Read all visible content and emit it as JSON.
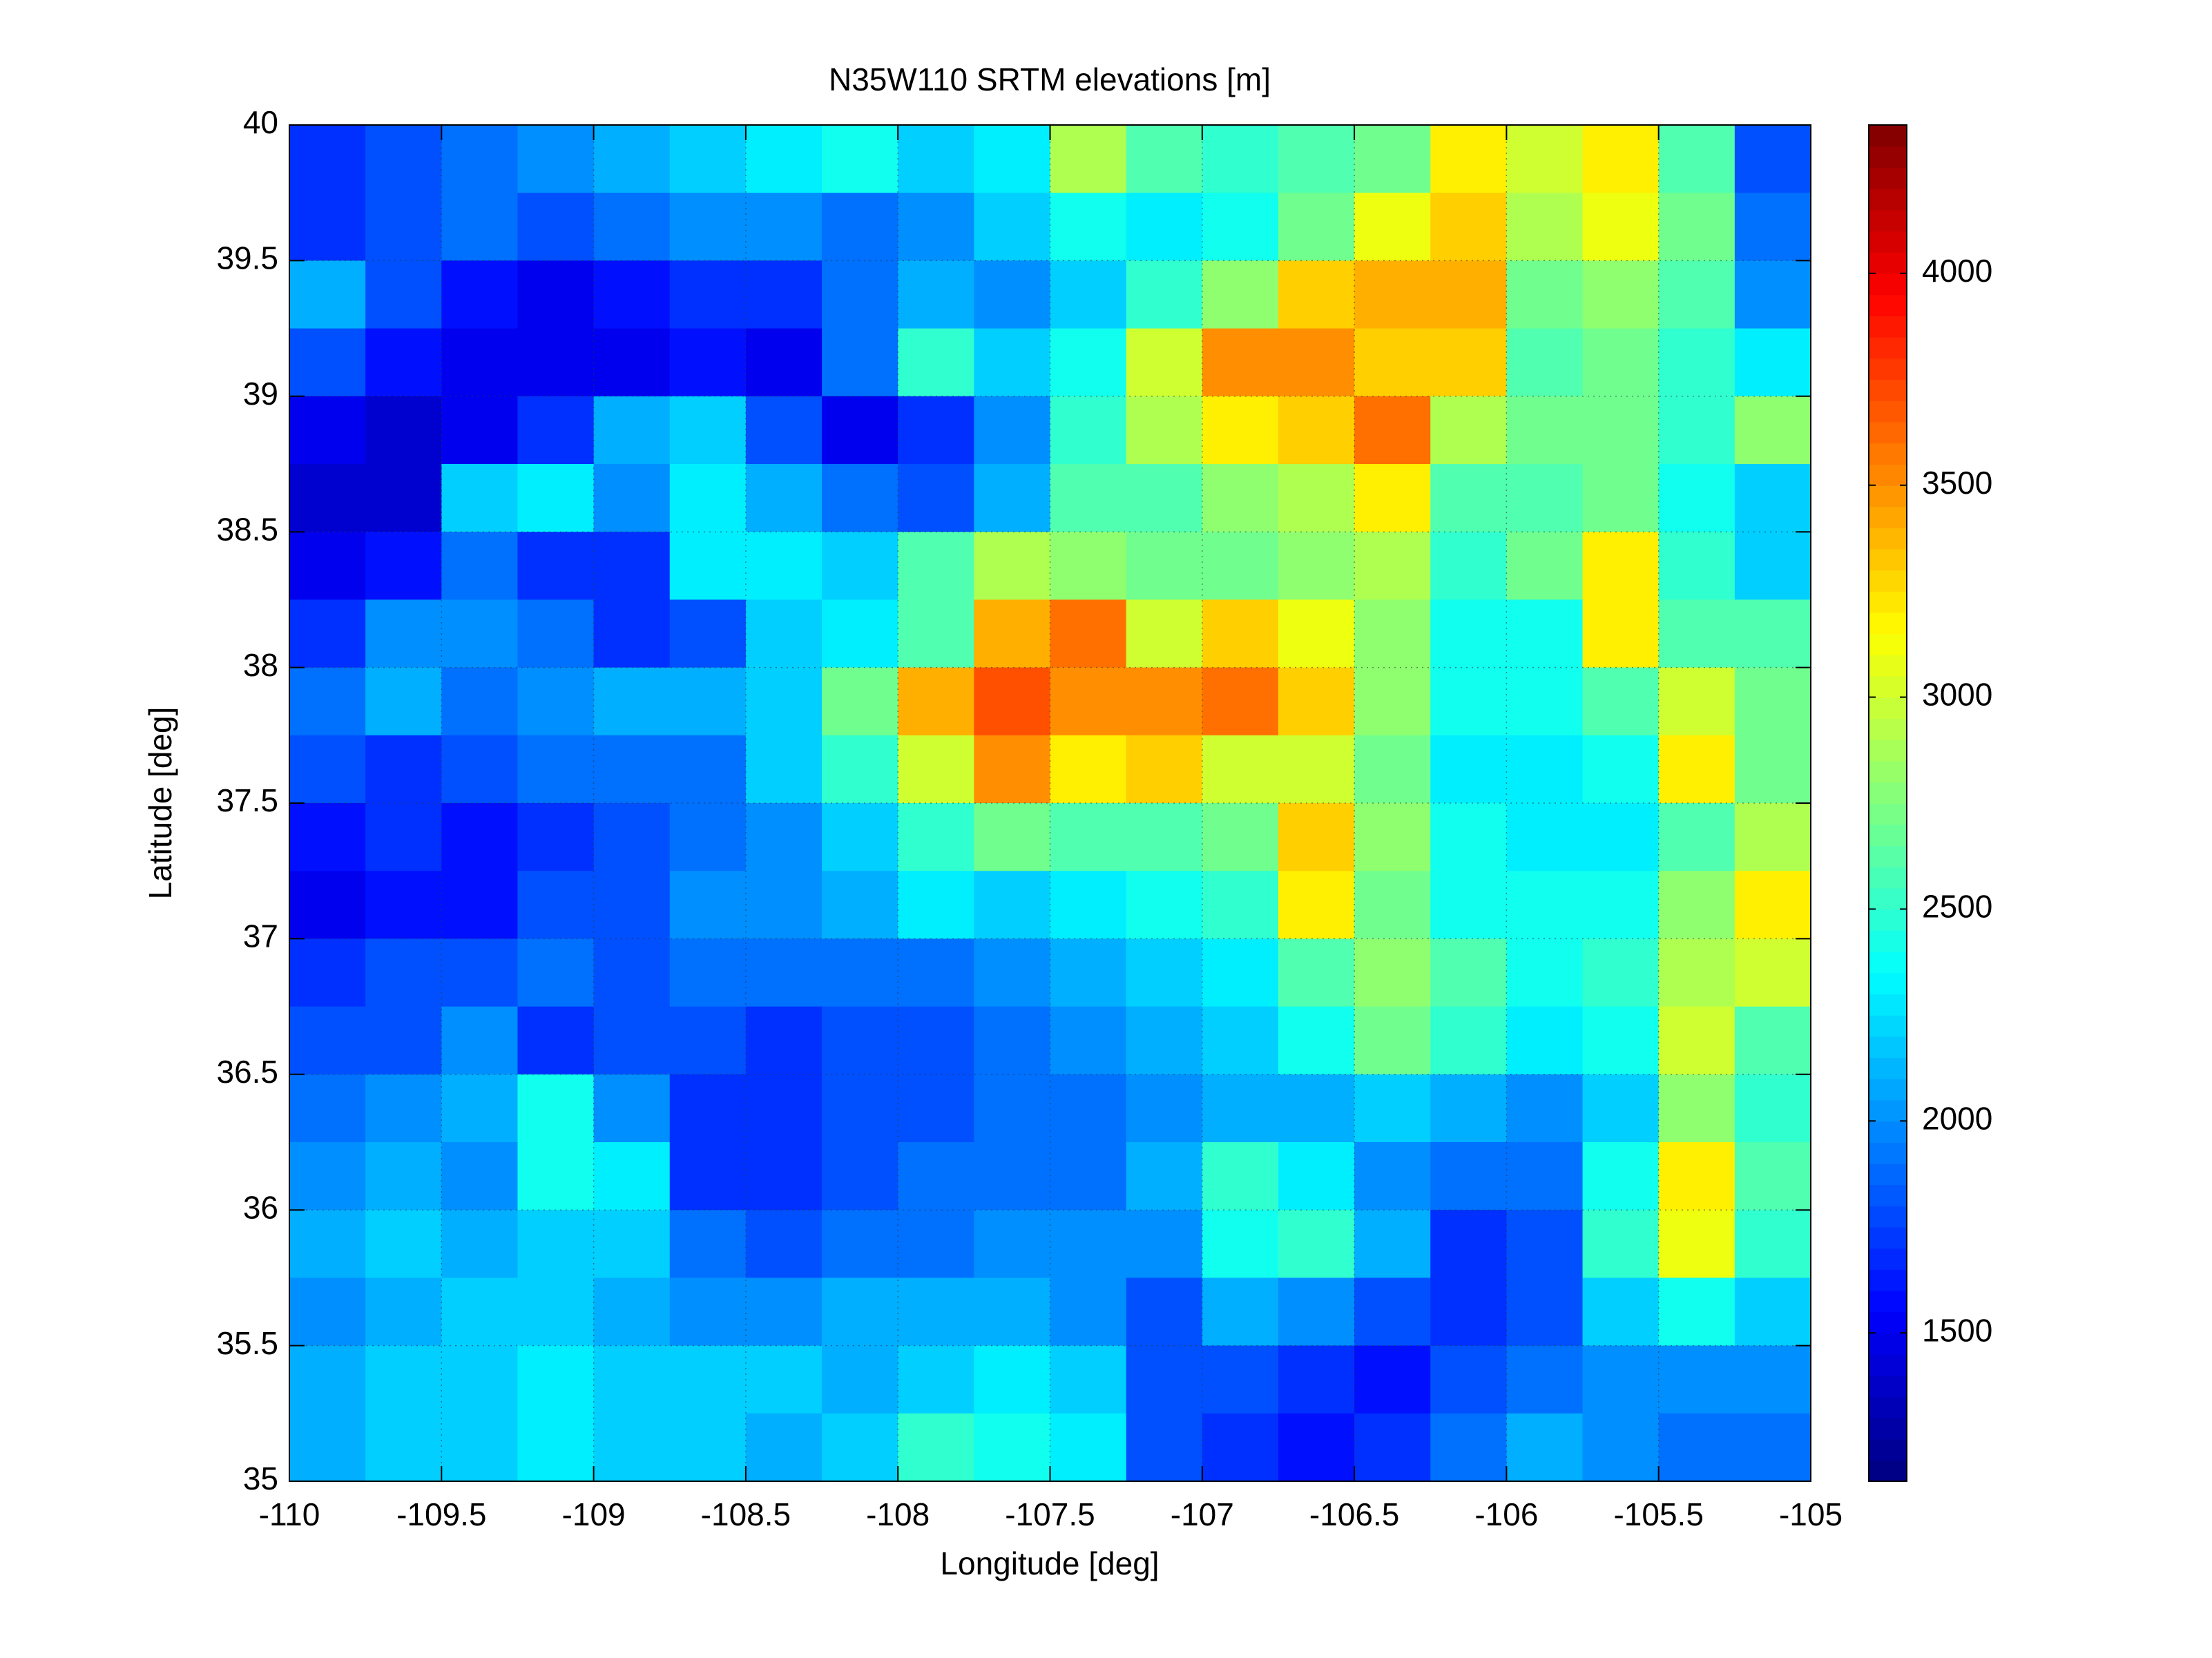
{
  "chart_data": {
    "type": "heatmap",
    "title": "N35W110 SRTM elevations [m]",
    "x_label": "Longitude [deg]",
    "y_label": "Latitude [deg]",
    "xlim": [
      -110,
      -105
    ],
    "ylim": [
      35,
      40
    ],
    "xticks": [
      -110,
      -109.5,
      -109,
      -108.5,
      -108,
      -107.5,
      -107,
      -106.5,
      -106,
      -105.5,
      -105
    ],
    "yticks": [
      35,
      35.5,
      36,
      36.5,
      37,
      37.5,
      38,
      38.5,
      39,
      39.5,
      40
    ],
    "grid": true,
    "colormap": "jet",
    "clim": [
      1150,
      4350
    ],
    "cticks": [
      1500,
      2000,
      2500,
      3000,
      3500,
      4000
    ],
    "x": [
      -109.875,
      -109.625,
      -109.375,
      -109.125,
      -108.875,
      -108.625,
      -108.375,
      -108.125,
      -107.875,
      -107.625,
      -107.375,
      -107.125,
      -106.875,
      -106.625,
      -106.375,
      -106.125,
      -105.875,
      -105.625,
      -105.375,
      -105.125
    ],
    "y": [
      39.875,
      39.625,
      39.375,
      39.125,
      38.875,
      38.625,
      38.375,
      38.125,
      37.875,
      37.625,
      37.375,
      37.125,
      36.875,
      36.625,
      36.375,
      36.125,
      35.875,
      35.625,
      35.375,
      35.125
    ],
    "values": [
      [
        1700,
        1800,
        1900,
        2000,
        2100,
        2200,
        2300,
        2400,
        2200,
        2300,
        2900,
        2600,
        2500,
        2600,
        2700,
        3200,
        3000,
        3200,
        2600,
        1800
      ],
      [
        1700,
        1800,
        1900,
        1800,
        1900,
        2000,
        2000,
        1900,
        2000,
        2200,
        2400,
        2300,
        2400,
        2700,
        3100,
        3300,
        2900,
        3100,
        2700,
        1900
      ],
      [
        2100,
        1800,
        1600,
        1500,
        1600,
        1700,
        1700,
        1900,
        2100,
        2000,
        2200,
        2500,
        2800,
        3300,
        3400,
        3400,
        2700,
        2800,
        2600,
        2000
      ],
      [
        1800,
        1600,
        1500,
        1500,
        1500,
        1600,
        1500,
        1900,
        2500,
        2200,
        2400,
        3000,
        3500,
        3500,
        3300,
        3300,
        2600,
        2700,
        2500,
        2300
      ],
      [
        1500,
        1400,
        1500,
        1700,
        2100,
        2200,
        1800,
        1500,
        1700,
        2000,
        2500,
        2900,
        3200,
        3300,
        3600,
        2900,
        2700,
        2700,
        2500,
        2800
      ],
      [
        1400,
        1400,
        2200,
        2300,
        2000,
        2300,
        2100,
        1900,
        1800,
        2100,
        2600,
        2600,
        2800,
        2900,
        3200,
        2600,
        2600,
        2700,
        2400,
        2200
      ],
      [
        1500,
        1600,
        1900,
        1700,
        1700,
        2300,
        2300,
        2200,
        2600,
        2900,
        2800,
        2700,
        2700,
        2800,
        2900,
        2500,
        2700,
        3200,
        2500,
        2200
      ],
      [
        1700,
        2000,
        2000,
        1900,
        1700,
        1800,
        2200,
        2300,
        2600,
        3400,
        3600,
        3000,
        3300,
        3100,
        2800,
        2400,
        2400,
        3200,
        2600,
        2600
      ],
      [
        1900,
        2100,
        1900,
        2000,
        2100,
        2100,
        2200,
        2700,
        3400,
        3700,
        3500,
        3500,
        3600,
        3300,
        2800,
        2400,
        2400,
        2600,
        3000,
        2700
      ],
      [
        1800,
        1700,
        1800,
        1900,
        1900,
        1900,
        2200,
        2500,
        3000,
        3500,
        3200,
        3300,
        3000,
        3000,
        2700,
        2300,
        2300,
        2400,
        3200,
        2700
      ],
      [
        1600,
        1700,
        1600,
        1700,
        1800,
        1900,
        2000,
        2200,
        2500,
        2700,
        2600,
        2600,
        2700,
        3300,
        2800,
        2400,
        2300,
        2300,
        2600,
        2900
      ],
      [
        1500,
        1600,
        1600,
        1800,
        1800,
        2000,
        2000,
        2100,
        2300,
        2200,
        2300,
        2400,
        2500,
        3200,
        2700,
        2400,
        2400,
        2400,
        2800,
        3200
      ],
      [
        1700,
        1800,
        1800,
        1900,
        1800,
        1900,
        1900,
        1900,
        1900,
        2000,
        2100,
        2200,
        2300,
        2600,
        2800,
        2600,
        2400,
        2500,
        2900,
        3000
      ],
      [
        1800,
        1800,
        2000,
        1700,
        1800,
        1800,
        1700,
        1800,
        1800,
        1900,
        2000,
        2100,
        2200,
        2400,
        2700,
        2500,
        2300,
        2400,
        3000,
        2600
      ],
      [
        1900,
        2000,
        2100,
        2400,
        2000,
        1700,
        1700,
        1800,
        1800,
        1900,
        1900,
        2000,
        2100,
        2100,
        2200,
        2100,
        2000,
        2200,
        2800,
        2500
      ],
      [
        2000,
        2100,
        2000,
        2400,
        2300,
        1700,
        1700,
        1800,
        1900,
        1900,
        1900,
        2100,
        2500,
        2300,
        2000,
        1900,
        1900,
        2400,
        3200,
        2600
      ],
      [
        2100,
        2200,
        2100,
        2200,
        2200,
        1900,
        1800,
        1900,
        1900,
        2000,
        2000,
        2000,
        2400,
        2500,
        2100,
        1700,
        1800,
        2500,
        3100,
        2500
      ],
      [
        2000,
        2100,
        2200,
        2200,
        2100,
        2000,
        2000,
        2100,
        2100,
        2100,
        2000,
        1800,
        2100,
        2000,
        1800,
        1700,
        1800,
        2200,
        2400,
        2200
      ],
      [
        2100,
        2200,
        2200,
        2300,
        2200,
        2200,
        2200,
        2100,
        2200,
        2300,
        2200,
        1800,
        1800,
        1700,
        1600,
        1800,
        1900,
        2000,
        2000,
        2000
      ],
      [
        2100,
        2200,
        2200,
        2300,
        2200,
        2200,
        2100,
        2200,
        2500,
        2400,
        2300,
        1800,
        1700,
        1600,
        1700,
        1900,
        2100,
        2000,
        1900,
        1900
      ]
    ]
  }
}
